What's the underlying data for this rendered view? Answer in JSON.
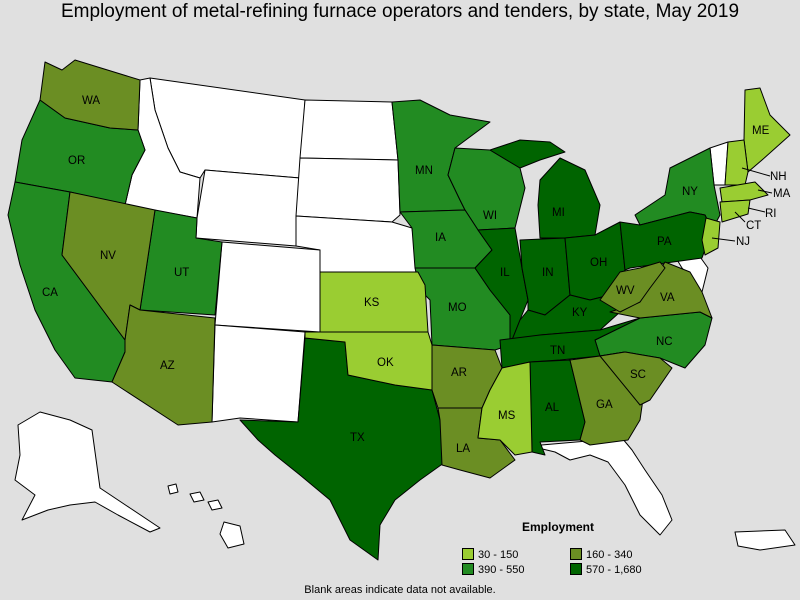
{
  "title": "Employment of metal-refining furnace operators and tenders, by state, May 2019",
  "legend": {
    "title": "Employment",
    "items": [
      {
        "label": "30 - 150",
        "color": "#9acd32"
      },
      {
        "label": "160 - 340",
        "color": "#6b8e23"
      },
      {
        "label": "390 - 550",
        "color": "#228b22"
      },
      {
        "label": "570 - 1,680",
        "color": "#006400"
      }
    ]
  },
  "footnote": "Blank areas indicate data not available.",
  "state_labels": [
    "WA",
    "OR",
    "CA",
    "NV",
    "UT",
    "AZ",
    "MN",
    "WI",
    "IA",
    "MO",
    "KS",
    "OK",
    "TX",
    "AR",
    "LA",
    "MS",
    "AL",
    "IL",
    "IN",
    "MI",
    "OH",
    "KY",
    "TN",
    "GA",
    "SC",
    "NC",
    "VA",
    "WV",
    "PA",
    "NY",
    "ME",
    "NH",
    "MA",
    "CT",
    "RI",
    "NJ"
  ],
  "colors": {
    "none": "#ffffff",
    "c1": "#9acd32",
    "c2": "#6b8e23",
    "c3": "#228b22",
    "c4": "#006400"
  }
}
